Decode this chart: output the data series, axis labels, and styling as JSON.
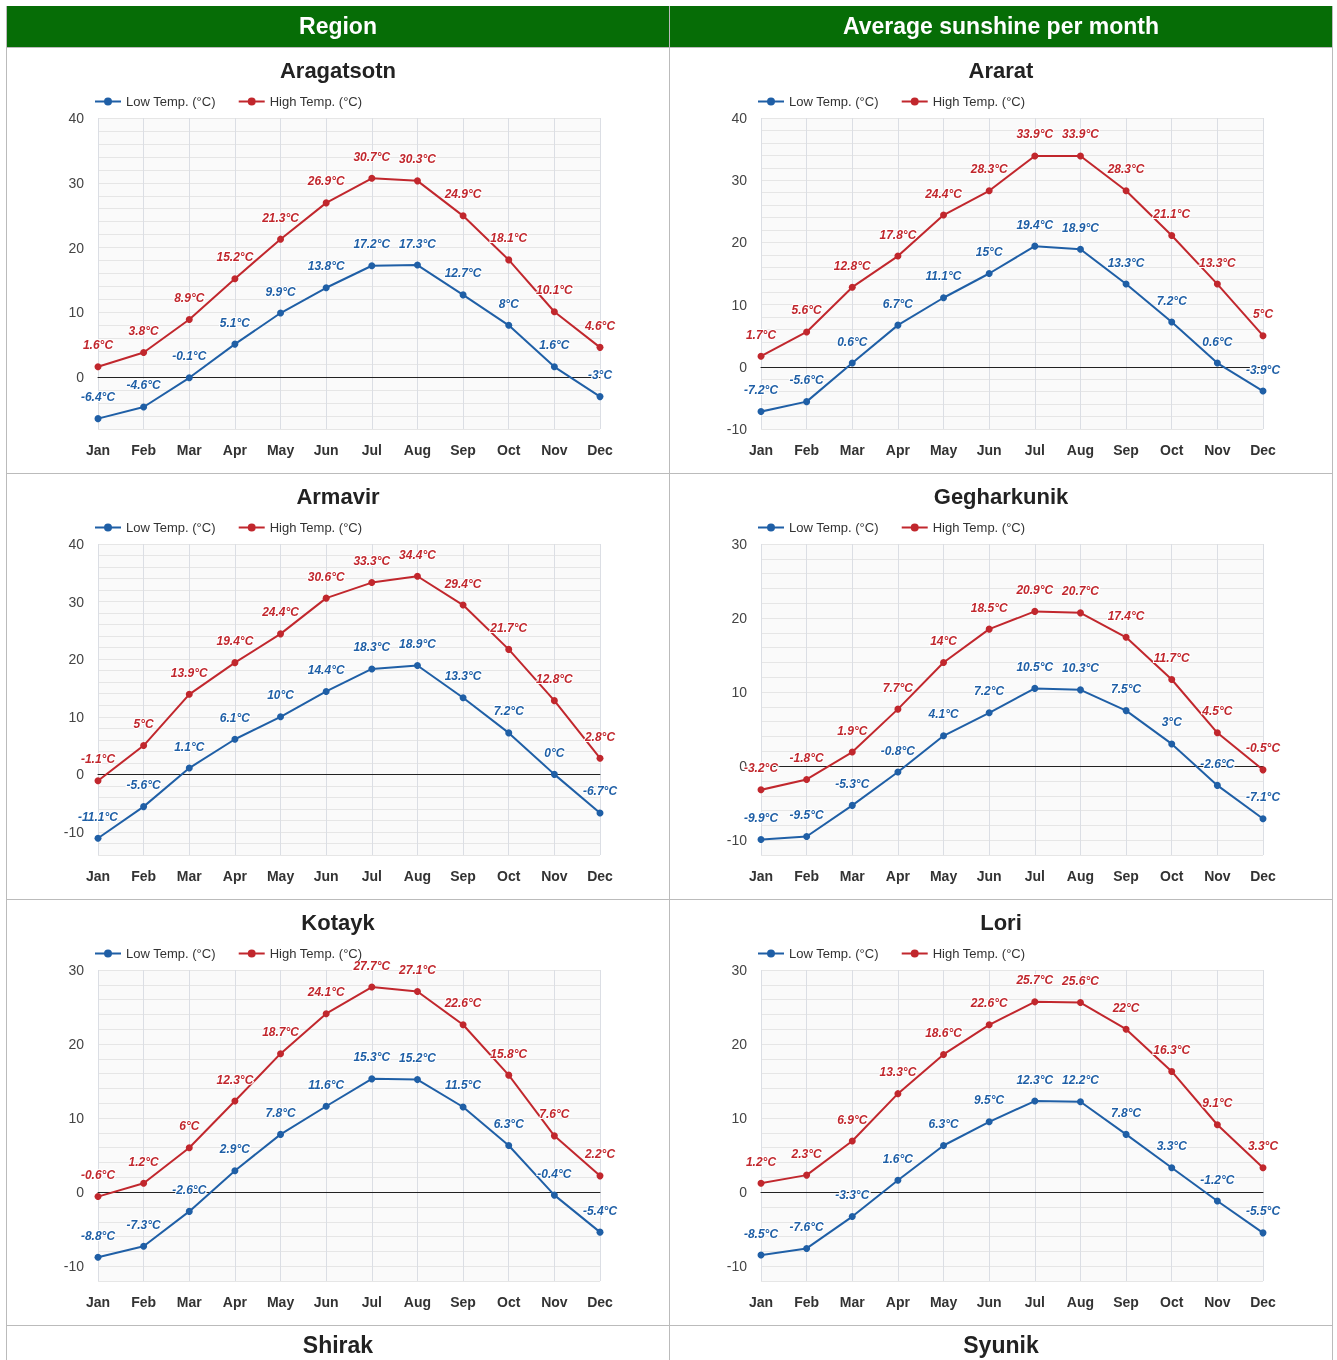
{
  "chart_data": [
    {
      "type": "other",
      "annotations": [
        "Region",
        "Average sunshine per month"
      ]
    },
    {
      "type": "line",
      "title": "Aragatsotn",
      "categories": [
        "Jan",
        "Feb",
        "Mar",
        "Apr",
        "May",
        "Jun",
        "Jul",
        "Aug",
        "Sep",
        "Oct",
        "Nov",
        "Dec"
      ],
      "ylim": [
        -8,
        40
      ],
      "yticks": [
        0,
        10,
        20,
        30,
        40
      ],
      "grid": true,
      "legend": "top left",
      "marker": "circle",
      "series": [
        {
          "name": "Low Temp. (°C)",
          "color": "#1f5fa6",
          "values": [
            -6.4,
            -4.6,
            -0.1,
            5.1,
            9.9,
            13.8,
            17.2,
            17.3,
            12.7,
            8,
            1.6,
            -3
          ],
          "value_labels": [
            "-6.4°C",
            "-4.6°C",
            "-0.1°C",
            "5.1°C",
            "9.9°C",
            "13.8°C",
            "17.2°C",
            "17.3°C",
            "12.7°C",
            "8°C",
            "1.6°C",
            "-3°C"
          ]
        },
        {
          "name": "High Temp. (°C)",
          "color": "#c1272d",
          "values": [
            1.6,
            3.8,
            8.9,
            15.2,
            21.3,
            26.9,
            30.7,
            30.3,
            24.9,
            18.1,
            10.1,
            4.6
          ],
          "value_labels": [
            "1.6°C",
            "3.8°C",
            "8.9°C",
            "15.2°C",
            "21.3°C",
            "26.9°C",
            "30.7°C",
            "30.3°C",
            "24.9°C",
            "18.1°C",
            "10.1°C",
            "4.6°C"
          ]
        }
      ]
    },
    {
      "type": "line",
      "title": "Ararat",
      "categories": [
        "Jan",
        "Feb",
        "Mar",
        "Apr",
        "May",
        "Jun",
        "Jul",
        "Aug",
        "Sep",
        "Oct",
        "Nov",
        "Dec"
      ],
      "ylim": [
        -10,
        40
      ],
      "yticks": [
        -10,
        0,
        10,
        20,
        30,
        40
      ],
      "grid": true,
      "legend": "top left",
      "marker": "circle",
      "series": [
        {
          "name": "Low Temp. (°C)",
          "color": "#1f5fa6",
          "values": [
            -7.2,
            -5.6,
            0.6,
            6.7,
            11.1,
            15,
            19.4,
            18.9,
            13.3,
            7.2,
            0.6,
            -3.9
          ],
          "value_labels": [
            "-7.2°C",
            "-5.6°C",
            "0.6°C",
            "6.7°C",
            "11.1°C",
            "15°C",
            "19.4°C",
            "18.9°C",
            "13.3°C",
            "7.2°C",
            "0.6°C",
            "-3.9°C"
          ]
        },
        {
          "name": "High Temp. (°C)",
          "color": "#c1272d",
          "values": [
            1.7,
            5.6,
            12.8,
            17.8,
            24.4,
            28.3,
            33.9,
            33.9,
            28.3,
            21.1,
            13.3,
            5
          ],
          "value_labels": [
            "1.7°C",
            "5.6°C",
            "12.8°C",
            "17.8°C",
            "24.4°C",
            "28.3°C",
            "33.9°C",
            "33.9°C",
            "28.3°C",
            "21.1°C",
            "13.3°C",
            "5°C"
          ]
        }
      ]
    },
    {
      "type": "line",
      "title": "Armavir",
      "categories": [
        "Jan",
        "Feb",
        "Mar",
        "Apr",
        "May",
        "Jun",
        "Jul",
        "Aug",
        "Sep",
        "Oct",
        "Nov",
        "Dec"
      ],
      "ylim": [
        -14,
        40
      ],
      "yticks": [
        -10,
        0,
        10,
        20,
        30,
        40
      ],
      "grid": true,
      "legend": "top left",
      "marker": "circle",
      "series": [
        {
          "name": "Low Temp. (°C)",
          "color": "#1f5fa6",
          "values": [
            -11.1,
            -5.6,
            1.1,
            6.1,
            10,
            14.4,
            18.3,
            18.9,
            13.3,
            7.2,
            0,
            -6.7
          ],
          "value_labels": [
            "-11.1°C",
            "-5.6°C",
            "1.1°C",
            "6.1°C",
            "10°C",
            "14.4°C",
            "18.3°C",
            "18.9°C",
            "13.3°C",
            "7.2°C",
            "0°C",
            "-6.7°C"
          ]
        },
        {
          "name": "High Temp. (°C)",
          "color": "#c1272d",
          "values": [
            -1.1,
            5,
            13.9,
            19.4,
            24.4,
            30.6,
            33.3,
            34.4,
            29.4,
            21.7,
            12.8,
            2.8
          ],
          "value_labels": [
            "-1.1°C",
            "5°C",
            "13.9°C",
            "19.4°C",
            "24.4°C",
            "30.6°C",
            "33.3°C",
            "34.4°C",
            "29.4°C",
            "21.7°C",
            "12.8°C",
            "2.8°C"
          ]
        }
      ]
    },
    {
      "type": "line",
      "title": "Gegharkunik",
      "categories": [
        "Jan",
        "Feb",
        "Mar",
        "Apr",
        "May",
        "Jun",
        "Jul",
        "Aug",
        "Sep",
        "Oct",
        "Nov",
        "Dec"
      ],
      "ylim": [
        -12,
        30
      ],
      "yticks": [
        -10,
        0,
        10,
        20,
        30
      ],
      "grid": true,
      "legend": "top left",
      "marker": "circle",
      "series": [
        {
          "name": "Low Temp. (°C)",
          "color": "#1f5fa6",
          "values": [
            -9.9,
            -9.5,
            -5.3,
            -0.8,
            4.1,
            7.2,
            10.5,
            10.3,
            7.5,
            3,
            -2.6,
            -7.1
          ],
          "value_labels": [
            "-9.9°C",
            "-9.5°C",
            "-5.3°C",
            "-0.8°C",
            "4.1°C",
            "7.2°C",
            "10.5°C",
            "10.3°C",
            "7.5°C",
            "3°C",
            "-2.6°C",
            "-7.1°C"
          ]
        },
        {
          "name": "High Temp. (°C)",
          "color": "#c1272d",
          "values": [
            -3.2,
            -1.8,
            1.9,
            7.7,
            14,
            18.5,
            20.9,
            20.7,
            17.4,
            11.7,
            4.5,
            -0.5
          ],
          "value_labels": [
            "-3.2°C",
            "-1.8°C",
            "1.9°C",
            "7.7°C",
            "14°C",
            "18.5°C",
            "20.9°C",
            "20.7°C",
            "17.4°C",
            "11.7°C",
            "4.5°C",
            "-0.5°C"
          ]
        }
      ]
    },
    {
      "type": "line",
      "title": "Kotayk",
      "categories": [
        "Jan",
        "Feb",
        "Mar",
        "Apr",
        "May",
        "Jun",
        "Jul",
        "Aug",
        "Sep",
        "Oct",
        "Nov",
        "Dec"
      ],
      "ylim": [
        -12,
        30
      ],
      "yticks": [
        -10,
        0,
        10,
        20,
        30
      ],
      "grid": true,
      "legend": "top left",
      "marker": "circle",
      "series": [
        {
          "name": "Low Temp. (°C)",
          "color": "#1f5fa6",
          "values": [
            -8.8,
            -7.3,
            -2.6,
            2.9,
            7.8,
            11.6,
            15.3,
            15.2,
            11.5,
            6.3,
            -0.4,
            -5.4
          ],
          "value_labels": [
            "-8.8°C",
            "-7.3°C",
            "-2.6°C",
            "2.9°C",
            "7.8°C",
            "11.6°C",
            "15.3°C",
            "15.2°C",
            "11.5°C",
            "6.3°C",
            "-0.4°C",
            "-5.4°C"
          ]
        },
        {
          "name": "High Temp. (°C)",
          "color": "#c1272d",
          "values": [
            -0.6,
            1.2,
            6,
            12.3,
            18.7,
            24.1,
            27.7,
            27.1,
            22.6,
            15.8,
            7.6,
            2.2
          ],
          "value_labels": [
            "-0.6°C",
            "1.2°C",
            "6°C",
            "12.3°C",
            "18.7°C",
            "24.1°C",
            "27.7°C",
            "27.1°C",
            "22.6°C",
            "15.8°C",
            "7.6°C",
            "2.2°C"
          ]
        }
      ]
    },
    {
      "type": "line",
      "title": "Lori",
      "categories": [
        "Jan",
        "Feb",
        "Mar",
        "Apr",
        "May",
        "Jun",
        "Jul",
        "Aug",
        "Sep",
        "Oct",
        "Nov",
        "Dec"
      ],
      "ylim": [
        -12,
        30
      ],
      "yticks": [
        -10,
        0,
        10,
        20,
        30
      ],
      "grid": true,
      "legend": "top left",
      "marker": "circle",
      "series": [
        {
          "name": "Low Temp. (°C)",
          "color": "#1f5fa6",
          "values": [
            -8.5,
            -7.6,
            -3.3,
            1.6,
            6.3,
            9.5,
            12.3,
            12.2,
            7.8,
            3.3,
            -1.2,
            -5.5
          ],
          "value_labels": [
            "-8.5°C",
            "-7.6°C",
            "-3.3°C",
            "1.6°C",
            "6.3°C",
            "9.5°C",
            "12.3°C",
            "12.2°C",
            "7.8°C",
            "3.3°C",
            "-1.2°C",
            "-5.5°C"
          ]
        },
        {
          "name": "High Temp. (°C)",
          "color": "#c1272d",
          "values": [
            1.2,
            2.3,
            6.9,
            13.3,
            18.6,
            22.6,
            25.7,
            25.6,
            22,
            16.3,
            9.1,
            3.3
          ],
          "value_labels": [
            "1.2°C",
            "2.3°C",
            "6.9°C",
            "13.3°C",
            "18.6°C",
            "22.6°C",
            "25.7°C",
            "25.6°C",
            "22°C",
            "16.3°C",
            "9.1°C",
            "3.3°C"
          ]
        }
      ]
    },
    {
      "type": "other",
      "title": "Shirak"
    },
    {
      "type": "other",
      "title": "Syunik"
    }
  ]
}
